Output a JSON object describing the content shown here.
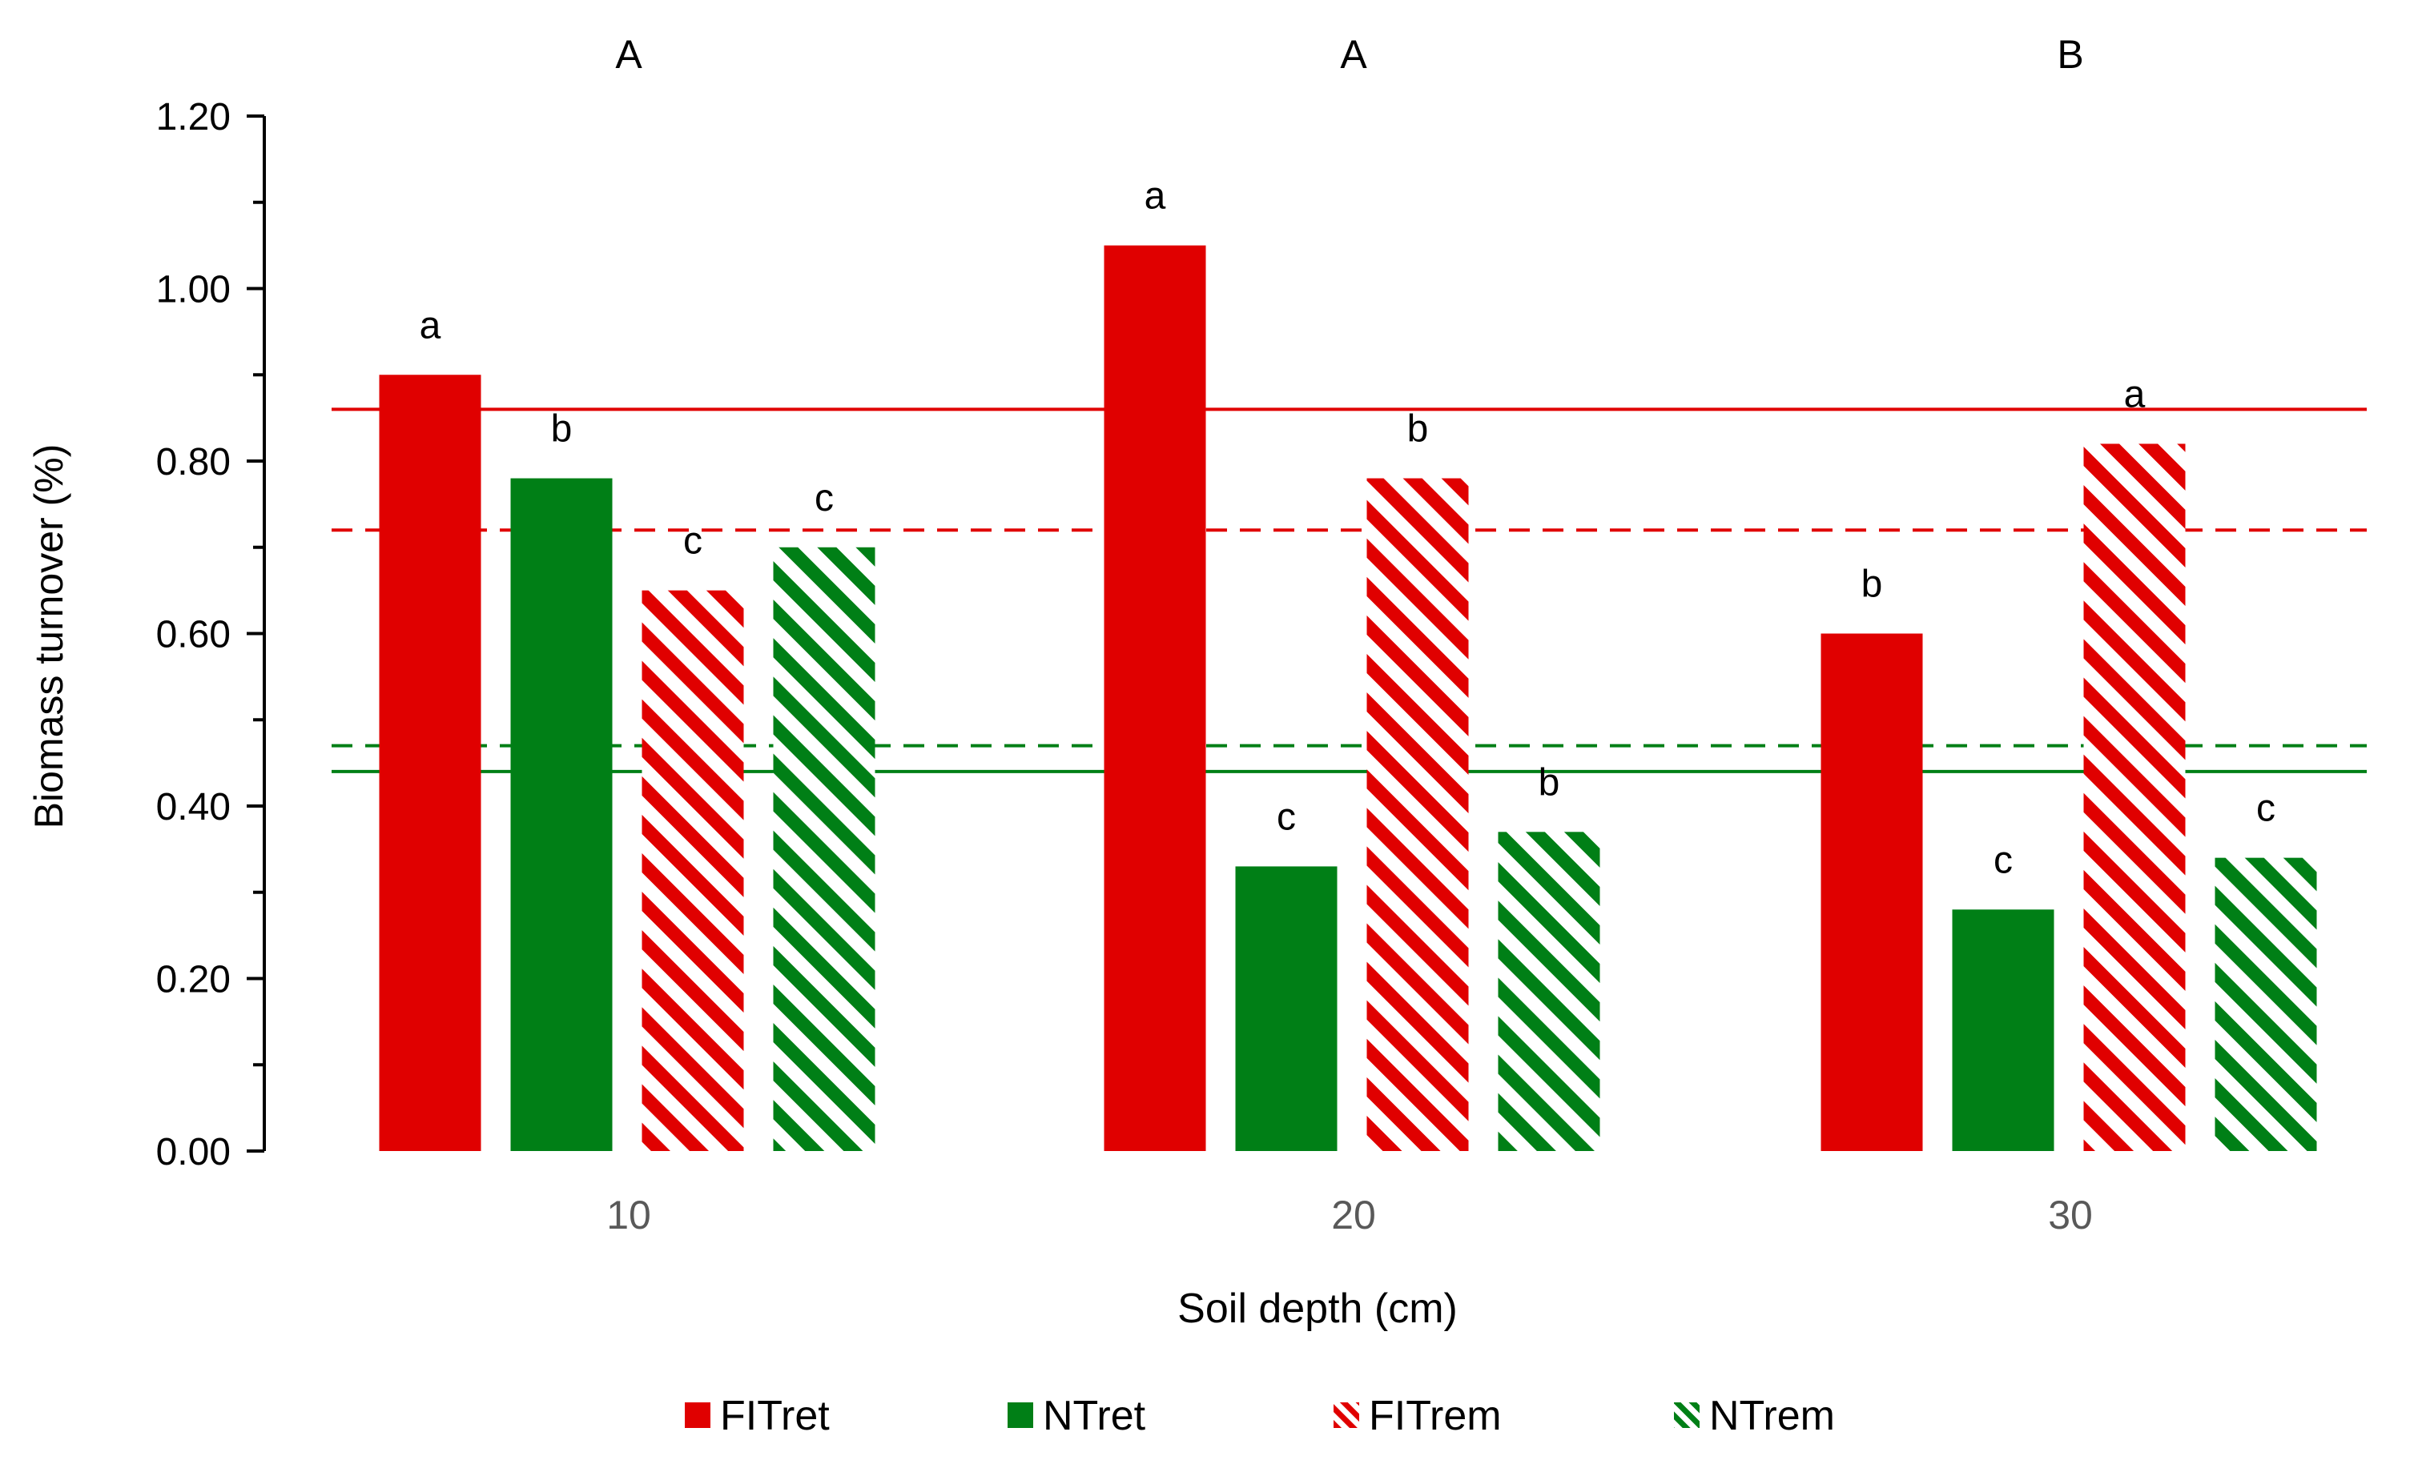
{
  "chart_data": {
    "type": "bar",
    "title": "",
    "xlabel": "Soil depth (cm)",
    "ylabel": "Biomass turnover (%)",
    "ylim": [
      0,
      1.2
    ],
    "yticks": [
      "0.00",
      "0.20",
      "0.40",
      "0.60",
      "0.80",
      "1.00",
      "1.20"
    ],
    "categories": [
      "10",
      "20",
      "30"
    ],
    "group_letters": [
      "A",
      "A",
      "B"
    ],
    "series": [
      {
        "name": "FITret",
        "color": "#e00000",
        "pattern": "solid",
        "values": [
          0.9,
          1.05,
          0.6
        ],
        "letters": [
          "a",
          "a",
          "b"
        ]
      },
      {
        "name": "NTret",
        "color": "#007f16",
        "pattern": "solid",
        "values": [
          0.78,
          0.33,
          0.28
        ],
        "letters": [
          "b",
          "c",
          "c"
        ]
      },
      {
        "name": "FITrem",
        "color": "#e00000",
        "pattern": "hatch",
        "values": [
          0.65,
          0.78,
          0.82
        ],
        "letters": [
          "c",
          "b",
          "a"
        ]
      },
      {
        "name": "NTrem",
        "color": "#007f16",
        "pattern": "hatch",
        "values": [
          0.7,
          0.37,
          0.34
        ],
        "letters": [
          "c",
          "b",
          "c"
        ]
      }
    ],
    "reference_lines": [
      {
        "value": 0.86,
        "color": "#e00000",
        "style": "solid"
      },
      {
        "value": 0.72,
        "color": "#e00000",
        "style": "dashed"
      },
      {
        "value": 0.47,
        "color": "#007f16",
        "style": "dashed"
      },
      {
        "value": 0.44,
        "color": "#007f16",
        "style": "solid"
      }
    ],
    "legend_position": "bottom",
    "grid": false
  }
}
